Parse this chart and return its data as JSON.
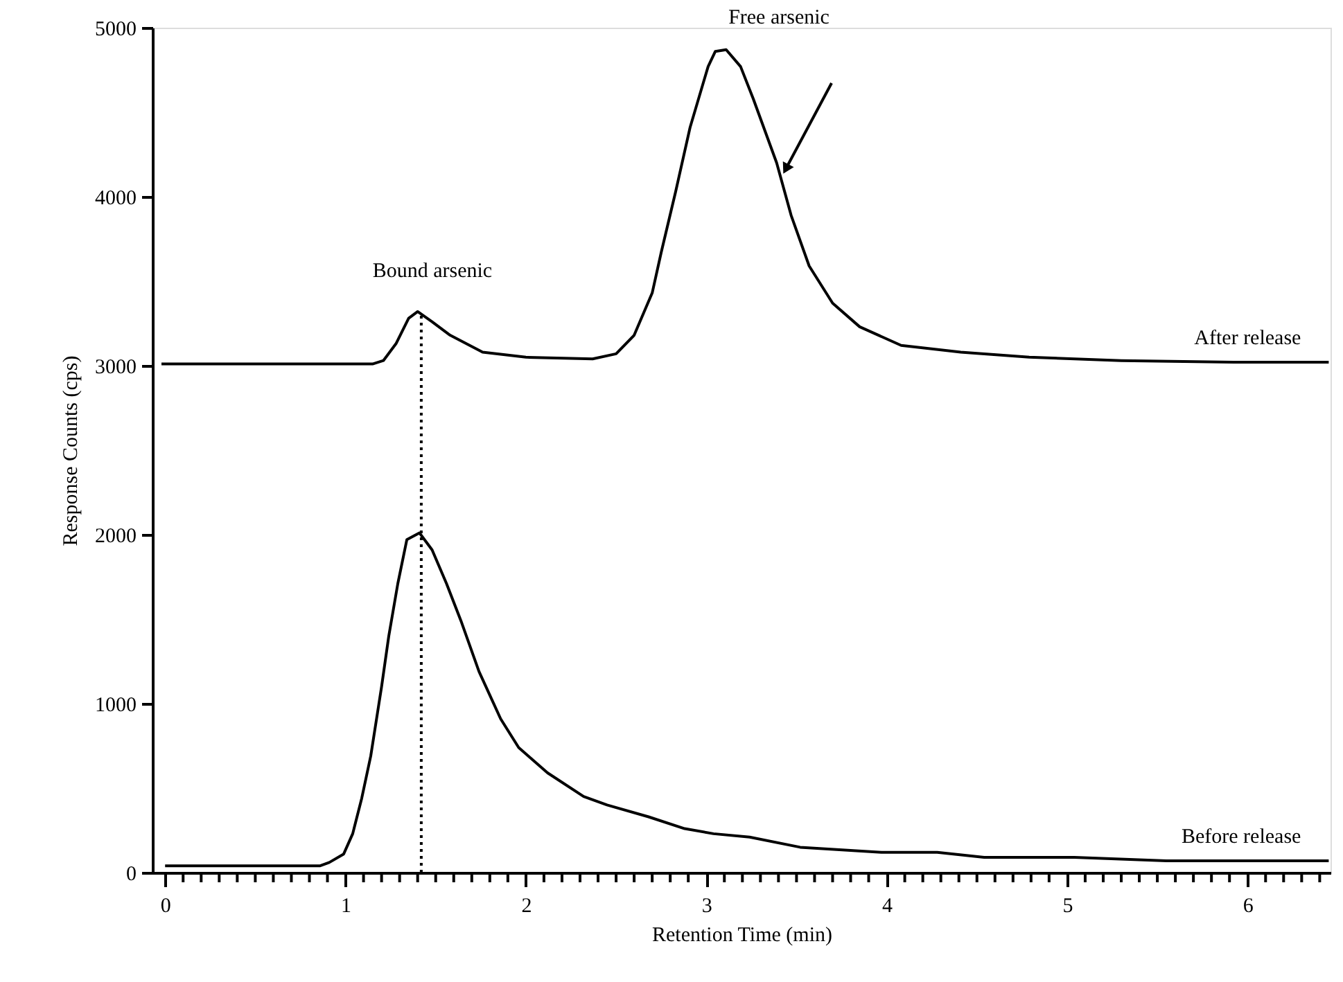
{
  "chart_data": {
    "type": "line",
    "xlabel": "Retention Time (min)",
    "ylabel": "Response Counts (cps)",
    "xlim": [
      -0.07,
      6.46
    ],
    "ylim": [
      0,
      5000
    ],
    "xticks": [
      0,
      {
        "value": 0.1,
        "label": null
      },
      {
        "value": 0.2,
        "label": null
      },
      {
        "value": 0.3,
        "label": null
      },
      {
        "value": 0.4,
        "label": null
      },
      {
        "value": 0.5,
        "label": null
      },
      {
        "value": 0.6,
        "label": null
      },
      {
        "value": 0.7,
        "label": null
      },
      {
        "value": 0.8,
        "label": null
      },
      {
        "value": 0.9,
        "label": null
      },
      1,
      {
        "value": 1.1,
        "label": null
      },
      {
        "value": 1.2,
        "label": null
      },
      {
        "value": 1.3,
        "label": null
      },
      {
        "value": 1.4,
        "label": null
      },
      {
        "value": 1.5,
        "label": null
      },
      {
        "value": 1.6,
        "label": null
      },
      {
        "value": 1.7,
        "label": null
      },
      {
        "value": 1.8,
        "label": null
      },
      {
        "value": 1.9,
        "label": null
      },
      2,
      {
        "value": 2.1,
        "label": null
      },
      {
        "value": 2.2,
        "label": null
      },
      {
        "value": 2.3,
        "label": null
      },
      {
        "value": 2.4,
        "label": null
      },
      {
        "value": 2.5,
        "label": null
      },
      {
        "value": 2.6,
        "label": null
      },
      {
        "value": 2.7,
        "label": null
      },
      {
        "value": 2.8,
        "label": null
      },
      {
        "value": 2.9,
        "label": null
      },
      3,
      {
        "value": 3.1,
        "label": null
      },
      {
        "value": 3.2,
        "label": null
      },
      {
        "value": 3.3,
        "label": null
      },
      {
        "value": 3.4,
        "label": null
      },
      {
        "value": 3.5,
        "label": null
      },
      {
        "value": 3.6,
        "label": null
      },
      {
        "value": 3.7,
        "label": null
      },
      {
        "value": 3.8,
        "label": null
      },
      {
        "value": 3.9,
        "label": null
      },
      4,
      {
        "value": 4.1,
        "label": null
      },
      {
        "value": 4.2,
        "label": null
      },
      {
        "value": 4.3,
        "label": null
      },
      {
        "value": 4.4,
        "label": null
      },
      {
        "value": 4.5,
        "label": null
      },
      {
        "value": 4.6,
        "label": null
      },
      {
        "value": 4.7,
        "label": null
      },
      {
        "value": 4.8,
        "label": null
      },
      {
        "value": 4.9,
        "label": null
      },
      5,
      {
        "value": 5.1,
        "label": null
      },
      {
        "value": 5.2,
        "label": null
      },
      {
        "value": 5.3,
        "label": null
      },
      {
        "value": 5.4,
        "label": null
      },
      {
        "value": 5.5,
        "label": null
      },
      {
        "value": 5.6,
        "label": null
      },
      {
        "value": 5.7,
        "label": null
      },
      {
        "value": 5.8,
        "label": null
      },
      {
        "value": 5.9,
        "label": null
      },
      6,
      {
        "value": 6.1,
        "label": null
      },
      {
        "value": 6.2,
        "label": null
      },
      {
        "value": 6.3,
        "label": null
      },
      {
        "value": 6.4,
        "label": null
      }
    ],
    "yticks": [
      0,
      1000,
      2000,
      3000,
      4000,
      5000
    ],
    "grid": false,
    "marker": "none",
    "series": [
      {
        "name": "After release",
        "color": "#000000",
        "line_style": "solid",
        "x": [
          -0.02,
          0.5,
          1.15,
          1.21,
          1.28,
          1.35,
          1.4,
          1.48,
          1.58,
          1.76,
          2.0,
          2.37,
          2.5,
          2.6,
          2.7,
          2.75,
          2.83,
          2.91,
          3.01,
          3.05,
          3.11,
          3.19,
          3.26,
          3.39,
          3.47,
          3.57,
          3.7,
          3.85,
          4.08,
          4.41,
          4.79,
          5.3,
          5.93,
          6.45
        ],
        "values": [
          3010,
          3010,
          3010,
          3030,
          3130,
          3280,
          3320,
          3260,
          3180,
          3080,
          3050,
          3040,
          3070,
          3180,
          3430,
          3670,
          4030,
          4410,
          4770,
          4860,
          4870,
          4770,
          4580,
          4200,
          3890,
          3590,
          3370,
          3230,
          3120,
          3080,
          3050,
          3030,
          3020,
          3020
        ]
      },
      {
        "name": "Before release",
        "color": "#000000",
        "line_style": "solid",
        "x": [
          0,
          0.5,
          0.86,
          0.91,
          0.99,
          1.04,
          1.09,
          1.14,
          1.2,
          1.24,
          1.29,
          1.34,
          1.41,
          1.48,
          1.56,
          1.64,
          1.74,
          1.86,
          1.96,
          2.12,
          2.32,
          2.45,
          2.68,
          2.88,
          3.04,
          3.24,
          3.52,
          3.97,
          4.28,
          4.54,
          5.04,
          5.55,
          6.06,
          6.45
        ],
        "values": [
          40,
          40,
          40,
          60,
          110,
          230,
          440,
          690,
          1100,
          1400,
          1710,
          1970,
          2010,
          1910,
          1710,
          1490,
          1190,
          910,
          740,
          590,
          450,
          400,
          330,
          260,
          230,
          210,
          150,
          120,
          120,
          90,
          90,
          70,
          70,
          70
        ]
      },
      {
        "type": "line",
        "color": "#000000",
        "line_style": "dotted",
        "x": [
          1.42,
          1.42
        ],
        "values": [
          0,
          3320
        ]
      }
    ],
    "annotations": [
      {
        "text": "Bound arsenic",
        "x": 1.42,
        "y": 3320
      },
      "Free arsenic"
    ]
  }
}
